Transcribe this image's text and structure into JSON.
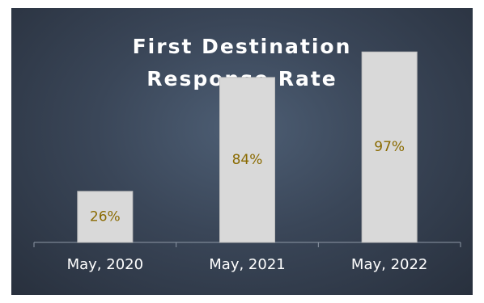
{
  "chart_data": {
    "type": "bar",
    "title_lines": [
      "First Destination",
      "Response Rate"
    ],
    "categories": [
      "May, 2020",
      "May, 2021",
      "May, 2022"
    ],
    "values": [
      26,
      84,
      97
    ],
    "data_labels": [
      "26%",
      "84%",
      "97%"
    ],
    "ylim": [
      0,
      100
    ],
    "grid": false,
    "legend": "none",
    "colors": {
      "bar": "#d9d9d9",
      "bar_stroke": "#bfbfbf",
      "data_label": "#8a6a00",
      "tick_label": "#ffffff",
      "axis": "#8d97a5"
    }
  }
}
